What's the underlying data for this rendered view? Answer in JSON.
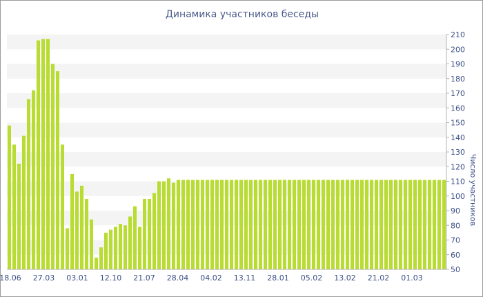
{
  "chart_data": {
    "type": "bar",
    "title": "Динамика участников беседы",
    "ylabel": "Число участников",
    "xlabel": "",
    "ylim": [
      50,
      210
    ],
    "yticks": [
      50,
      60,
      70,
      80,
      90,
      100,
      110,
      120,
      130,
      140,
      150,
      160,
      170,
      180,
      190,
      200,
      210
    ],
    "x_tick_labels": [
      "18.06",
      "27.03",
      "03.01",
      "12.10",
      "21.07",
      "28.04",
      "04.02",
      "13.11",
      "28.01",
      "05.02",
      "13.02",
      "21.02",
      "01.03"
    ],
    "bar_color": "#b8dc32",
    "grid": "alternating horizontal bands",
    "values": [
      148,
      135,
      122,
      141,
      166,
      172,
      206,
      207,
      207,
      190,
      185,
      135,
      78,
      115,
      103,
      107,
      98,
      84,
      58,
      65,
      75,
      77,
      79,
      81,
      80,
      86,
      93,
      79,
      98,
      98,
      102,
      110,
      110,
      112,
      109,
      111,
      111,
      111,
      111,
      111,
      111,
      111,
      111,
      111,
      111,
      111,
      111,
      111,
      111,
      111,
      111,
      111,
      111,
      111,
      111,
      111,
      111,
      111,
      111,
      111,
      111,
      111,
      111,
      111,
      111,
      111,
      111,
      111,
      111,
      111,
      111,
      111,
      111,
      111,
      111,
      111,
      111,
      111,
      111,
      111,
      111,
      111,
      111,
      111,
      111,
      111,
      111,
      111,
      111,
      111,
      111
    ]
  }
}
